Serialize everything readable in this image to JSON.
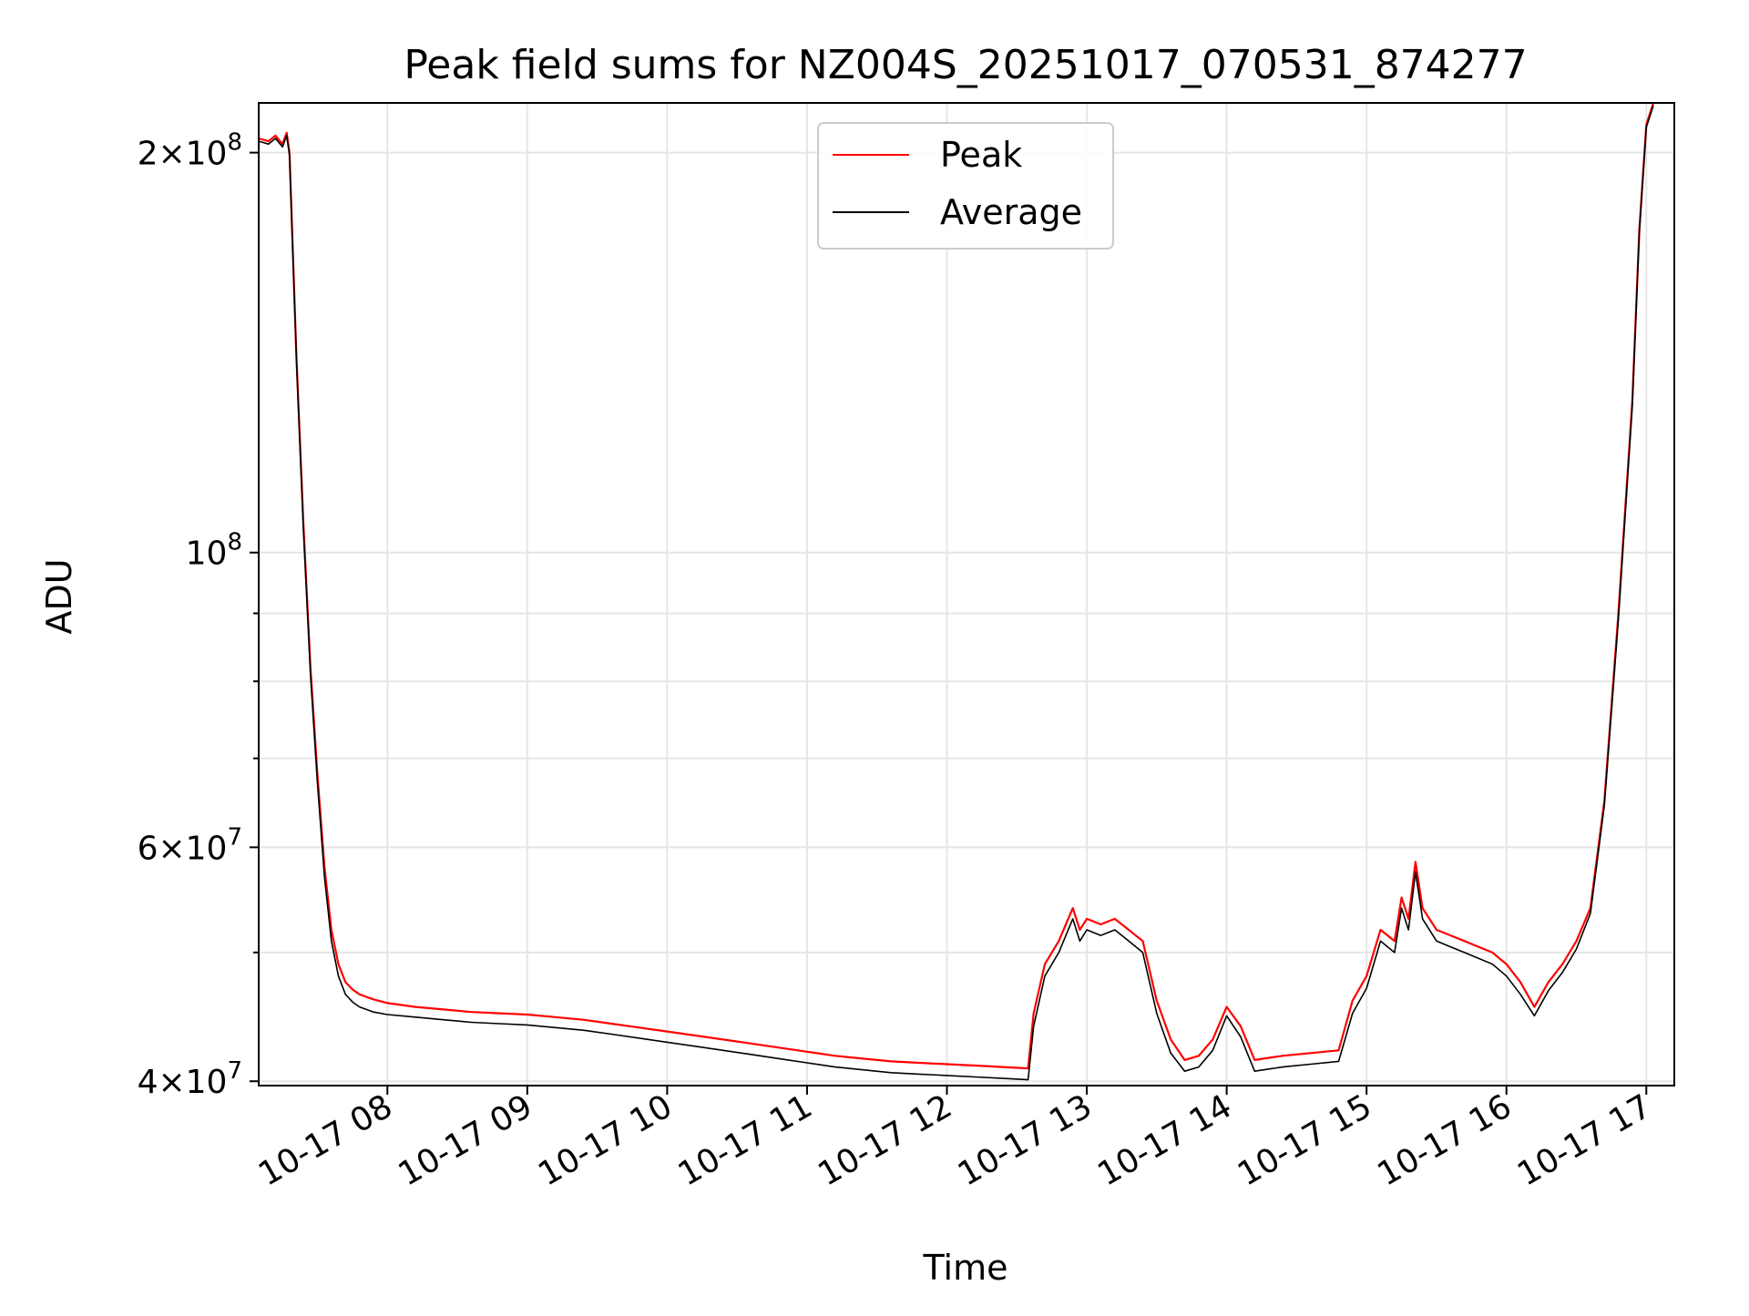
{
  "chart_data": {
    "type": "line",
    "title": "Peak field sums for NZ004S_20251017_070531_874277",
    "xlabel": "Time",
    "ylabel": "ADU",
    "yscale": "log",
    "grid": true,
    "legend_position": "top-center",
    "x_unit": "hours on 2025-10-17",
    "xlim": [
      7.08,
      17.2
    ],
    "ylim": [
      39700000,
      218000000
    ],
    "x_ticks": [
      {
        "value": 8,
        "label": "10-17 08"
      },
      {
        "value": 9,
        "label": "10-17 09"
      },
      {
        "value": 10,
        "label": "10-17 10"
      },
      {
        "value": 11,
        "label": "10-17 11"
      },
      {
        "value": 12,
        "label": "10-17 12"
      },
      {
        "value": 13,
        "label": "10-17 13"
      },
      {
        "value": 14,
        "label": "10-17 14"
      },
      {
        "value": 15,
        "label": "10-17 15"
      },
      {
        "value": 16,
        "label": "10-17 16"
      },
      {
        "value": 17,
        "label": "10-17 17"
      }
    ],
    "y_ticks": [
      {
        "value": 40000000,
        "mantissa": "4",
        "exponent": "7"
      },
      {
        "value": 60000000,
        "mantissa": "6",
        "exponent": "7"
      },
      {
        "value": 100000000,
        "mantissa": "10",
        "exponent": "8"
      },
      {
        "value": 200000000,
        "mantissa": "2",
        "exponent": "8"
      }
    ],
    "y_minor_ticks": [
      50000000,
      70000000,
      80000000,
      90000000
    ],
    "series": [
      {
        "name": "Peak",
        "color": "#ff0000",
        "x": [
          7.08,
          7.15,
          7.2,
          7.25,
          7.28,
          7.3,
          7.35,
          7.4,
          7.45,
          7.5,
          7.55,
          7.6,
          7.65,
          7.7,
          7.75,
          7.8,
          7.85,
          7.9,
          8.0,
          8.2,
          8.4,
          8.6,
          8.8,
          9.0,
          9.2,
          9.4,
          9.6,
          9.8,
          10.0,
          10.2,
          10.4,
          10.6,
          10.8,
          11.0,
          11.2,
          11.4,
          11.6,
          11.8,
          12.0,
          12.2,
          12.4,
          12.58,
          12.62,
          12.7,
          12.8,
          12.9,
          12.95,
          13.0,
          13.1,
          13.2,
          13.3,
          13.4,
          13.5,
          13.6,
          13.7,
          13.8,
          13.9,
          14.0,
          14.1,
          14.2,
          14.4,
          14.6,
          14.8,
          14.9,
          15.0,
          15.1,
          15.2,
          15.25,
          15.3,
          15.35,
          15.4,
          15.5,
          15.6,
          15.7,
          15.8,
          15.9,
          16.0,
          16.1,
          16.2,
          16.3,
          16.4,
          16.5,
          16.6,
          16.7,
          16.8,
          16.9,
          16.95,
          17.0,
          17.05
        ],
        "values": [
          205000000,
          204000000,
          206000000,
          203000000,
          207000000,
          200000000,
          140000000,
          105000000,
          82000000,
          68000000,
          58000000,
          52000000,
          49000000,
          47500000,
          46900000,
          46500000,
          46300000,
          46100000,
          45800000,
          45500000,
          45300000,
          45100000,
          45000000,
          44900000,
          44700000,
          44500000,
          44200000,
          43900000,
          43600000,
          43300000,
          43000000,
          42700000,
          42400000,
          42100000,
          41800000,
          41600000,
          41400000,
          41300000,
          41200000,
          41100000,
          41000000,
          40900000,
          45000000,
          49000000,
          51000000,
          54000000,
          52000000,
          53000000,
          52500000,
          53000000,
          52000000,
          51000000,
          46000000,
          43000000,
          41500000,
          41800000,
          43000000,
          45500000,
          44000000,
          41500000,
          41800000,
          42000000,
          42200000,
          46000000,
          48000000,
          52000000,
          51000000,
          55000000,
          53000000,
          58500000,
          54000000,
          52000000,
          51500000,
          51000000,
          50500000,
          50000000,
          49000000,
          47500000,
          45500000,
          47500000,
          49000000,
          51000000,
          54000000,
          65000000,
          90000000,
          130000000,
          175000000,
          210000000,
          218000000
        ]
      },
      {
        "name": "Average",
        "color": "#000000",
        "x": [
          7.08,
          7.15,
          7.2,
          7.25,
          7.28,
          7.3,
          7.35,
          7.4,
          7.45,
          7.5,
          7.55,
          7.6,
          7.65,
          7.7,
          7.75,
          7.8,
          7.85,
          7.9,
          8.0,
          8.2,
          8.4,
          8.6,
          8.8,
          9.0,
          9.2,
          9.4,
          9.6,
          9.8,
          10.0,
          10.2,
          10.4,
          10.6,
          10.8,
          11.0,
          11.2,
          11.4,
          11.6,
          11.8,
          12.0,
          12.2,
          12.4,
          12.58,
          12.62,
          12.7,
          12.8,
          12.9,
          12.95,
          13.0,
          13.1,
          13.2,
          13.3,
          13.4,
          13.5,
          13.6,
          13.7,
          13.8,
          13.9,
          14.0,
          14.1,
          14.2,
          14.4,
          14.6,
          14.8,
          14.9,
          15.0,
          15.1,
          15.2,
          15.25,
          15.3,
          15.35,
          15.4,
          15.5,
          15.6,
          15.7,
          15.8,
          15.9,
          16.0,
          16.1,
          16.2,
          16.3,
          16.4,
          16.5,
          16.6,
          16.7,
          16.8,
          16.9,
          16.95,
          17.0,
          17.05
        ],
        "values": [
          204000000,
          203000000,
          205000000,
          202000000,
          206000000,
          199000000,
          139000000,
          104000000,
          81000000,
          67000000,
          57000000,
          51000000,
          48000000,
          46500000,
          45900000,
          45500000,
          45300000,
          45100000,
          44900000,
          44700000,
          44500000,
          44300000,
          44200000,
          44100000,
          43900000,
          43700000,
          43400000,
          43100000,
          42800000,
          42500000,
          42200000,
          41900000,
          41600000,
          41300000,
          41000000,
          40800000,
          40600000,
          40500000,
          40400000,
          40300000,
          40200000,
          40100000,
          44000000,
          48000000,
          50000000,
          53000000,
          51000000,
          52000000,
          51500000,
          52000000,
          51000000,
          50000000,
          45000000,
          42000000,
          40700000,
          41000000,
          42200000,
          44800000,
          43200000,
          40700000,
          41000000,
          41200000,
          41400000,
          45000000,
          47000000,
          51000000,
          50000000,
          54000000,
          52000000,
          57500000,
          53000000,
          51000000,
          50500000,
          50000000,
          49500000,
          49000000,
          48000000,
          46500000,
          44800000,
          46800000,
          48300000,
          50300000,
          53500000,
          64500000,
          89000000,
          129000000,
          174000000,
          209000000,
          217000000
        ]
      }
    ]
  }
}
